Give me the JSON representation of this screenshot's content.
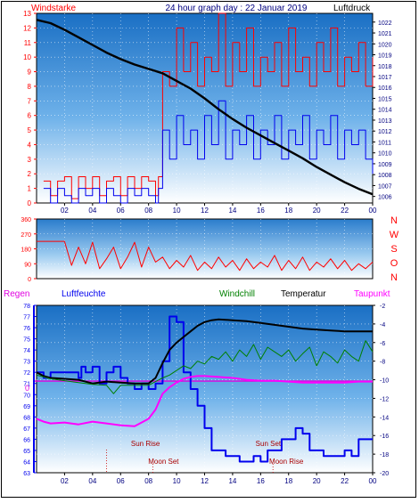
{
  "header": {
    "left_label": "Windstarke",
    "title": "24 hour graph day : 22 Januar 2019",
    "right_label": "Luftdruck"
  },
  "colors": {
    "wind_red": "#ff0000",
    "wind_blue": "#0000ee",
    "pressure_black": "#000000",
    "direction_red": "#ff0000",
    "humidity_blue": "#0000ee",
    "windchill_green": "#008000",
    "temperature_black": "#000000",
    "dewpoint_magenta": "#ff00ff",
    "regen_magenta": "#e000e0",
    "axis_blue": "#000080",
    "gradient_top": "#1a6fc4",
    "gradient_bottom": "#ffffff"
  },
  "x_ticks": [
    "02",
    "04",
    "06",
    "08",
    "10",
    "12",
    "14",
    "16",
    "18",
    "20",
    "22",
    "00"
  ],
  "panel2": {
    "directions": [
      "N",
      "W",
      "S",
      "O",
      "N"
    ]
  },
  "panel3": {
    "legend": {
      "regen": "Regen",
      "luftfeuchte": "Luftfeuchte",
      "windchill": "Windchill",
      "temperatur": "Temperatur",
      "taupunkt": "Taupunkt"
    },
    "rain_zero_label": "0",
    "events": {
      "sun_rise": "Sun Rise",
      "moon_set": "Moon Set",
      "sun_set": "Sun Set",
      "moon_rise": "Moon Rise"
    }
  },
  "chart_data": [
    {
      "type": "line",
      "title": "24 hour graph day : 22 Januar 2019",
      "xlabel": "",
      "x_range_hours": [
        0,
        24
      ],
      "y_left": {
        "label": "Windstarke",
        "ticks": [
          0,
          1,
          2,
          3,
          4,
          5,
          6,
          7,
          8,
          9,
          10,
          11,
          12,
          13
        ],
        "lim": [
          0,
          13
        ]
      },
      "y_right": {
        "label": "Luftdruck",
        "ticks": [
          1006,
          1007,
          1008,
          1009,
          1010,
          1011,
          1012,
          1013,
          1014,
          1015,
          1016,
          1017,
          1018,
          1019,
          1020,
          1021,
          1022
        ],
        "lim": [
          1005.4,
          1022.8
        ]
      },
      "grid": true,
      "series": [
        {
          "name": "Windstarke",
          "axis": "left",
          "x": [
            0.5,
            1.0,
            1.5,
            2.0,
            2.5,
            3.0,
            3.5,
            4.0,
            4.5,
            5.0,
            5.5,
            6.0,
            6.5,
            7.0,
            7.5,
            8.0,
            8.5,
            8.7,
            9.0,
            9.5,
            10.0,
            10.5,
            11.0,
            11.5,
            12.0,
            12.5,
            13.0,
            13.5,
            14.0,
            14.5,
            15.0,
            15.5,
            16.0,
            16.5,
            17.0,
            17.5,
            18.0,
            18.5,
            19.0,
            19.5,
            20.0,
            20.5,
            21.0,
            21.5,
            22.0,
            22.5,
            23.0,
            23.5,
            24.0
          ],
          "values": [
            1.5,
            0.5,
            1.5,
            1.8,
            0.3,
            1.8,
            1.0,
            1.8,
            0.5,
            1.5,
            1.8,
            0.5,
            1.8,
            1.0,
            1.8,
            1.5,
            0.5,
            1.8,
            9,
            8,
            12,
            9,
            11,
            8,
            10,
            9,
            13,
            8,
            11,
            9,
            12,
            8,
            10,
            9,
            11,
            8,
            12,
            9,
            10,
            8,
            11,
            9,
            12,
            8,
            10,
            9,
            11,
            8,
            10
          ]
        },
        {
          "name": "Windboen",
          "axis": "left",
          "x": [
            0.5,
            1.0,
            1.5,
            2.0,
            2.5,
            3.0,
            3.5,
            4.0,
            4.5,
            5.0,
            5.5,
            6.0,
            6.5,
            7.0,
            7.5,
            8.0,
            8.5,
            8.7,
            9.0,
            9.5,
            10.0,
            10.5,
            11.0,
            11.5,
            12.0,
            12.5,
            13.0,
            13.5,
            14.0,
            14.5,
            15.0,
            15.5,
            16.0,
            16.5,
            17.0,
            17.5,
            18.0,
            18.5,
            19.0,
            19.5,
            20.0,
            20.5,
            21.0,
            21.5,
            22.0,
            22.5,
            23.0,
            23.5,
            24.0
          ],
          "values": [
            1.0,
            0.0,
            1.0,
            0.5,
            0.0,
            1.0,
            0.5,
            1.0,
            0.0,
            1.0,
            0.5,
            0.0,
            1.0,
            0.5,
            1.0,
            0.5,
            0.0,
            1.0,
            5,
            3,
            6,
            4,
            5,
            3,
            6,
            4,
            7,
            3,
            5,
            4,
            6,
            3,
            5,
            4,
            6,
            3,
            5,
            4,
            6,
            3,
            5,
            4,
            6,
            3,
            5,
            4,
            5,
            3,
            2
          ]
        },
        {
          "name": "Luftdruck",
          "axis": "right",
          "x": [
            0,
            1,
            2,
            3,
            4,
            5,
            6,
            7,
            8,
            9,
            10,
            11,
            12,
            13,
            14,
            15,
            16,
            17,
            18,
            19,
            20,
            21,
            22,
            23,
            24
          ],
          "values": [
            1022.2,
            1021.9,
            1021.3,
            1020.6,
            1019.9,
            1019.2,
            1018.6,
            1018.1,
            1017.7,
            1017.3,
            1016.6,
            1015.9,
            1015.0,
            1014.0,
            1013.1,
            1012.3,
            1011.6,
            1010.9,
            1010.2,
            1009.5,
            1008.7,
            1008.0,
            1007.3,
            1006.7,
            1006.2
          ]
        }
      ]
    },
    {
      "type": "line",
      "title": "",
      "x_range_hours": [
        0,
        24
      ],
      "y_left": {
        "label": "",
        "ticks": [
          0,
          90,
          180,
          270,
          360
        ],
        "lim": [
          0,
          360
        ]
      },
      "grid": true,
      "series": [
        {
          "name": "Windrichtung",
          "x": [
            0,
            0.5,
            1,
            1.5,
            2,
            2.5,
            3,
            3.5,
            4,
            4.5,
            5,
            5.5,
            6,
            6.5,
            7,
            7.5,
            8,
            8.5,
            9,
            9.5,
            10,
            10.5,
            11,
            11.5,
            12,
            12.5,
            13,
            13.5,
            14,
            14.5,
            15,
            15.5,
            16,
            16.5,
            17,
            17.5,
            18,
            18.5,
            19,
            19.5,
            20,
            20.5,
            21,
            21.5,
            22,
            22.5,
            23,
            23.5,
            24
          ],
          "values": [
            225,
            225,
            225,
            225,
            225,
            80,
            190,
            90,
            220,
            60,
            120,
            190,
            60,
            130,
            220,
            70,
            190,
            100,
            130,
            60,
            110,
            70,
            140,
            50,
            100,
            60,
            130,
            70,
            110,
            50,
            120,
            60,
            100,
            70,
            140,
            50,
            110,
            60,
            130,
            50,
            100,
            70,
            120,
            60,
            110,
            50,
            90,
            60,
            100
          ]
        }
      ]
    },
    {
      "type": "line",
      "title": "",
      "x_range_hours": [
        0,
        24
      ],
      "y_left": {
        "label": "Luftfeuchte",
        "ticks": [
          63,
          64,
          65,
          66,
          67,
          68,
          69,
          70,
          71,
          72,
          73,
          74,
          75,
          76,
          77,
          78
        ],
        "lim": [
          63,
          78
        ]
      },
      "y_right": {
        "label": "Temperatur",
        "ticks": [
          -20,
          -18,
          -16,
          -14,
          -12,
          -10,
          -8,
          -6,
          -4,
          -2
        ],
        "lim": [
          -20,
          -2
        ]
      },
      "grid": true,
      "series": [
        {
          "name": "Luftfeuchte",
          "axis": "left",
          "x": [
            0,
            0.5,
            1,
            2,
            3,
            3.2,
            3.5,
            4,
            4.5,
            5,
            5.5,
            6,
            6.5,
            7,
            7.5,
            8,
            8.5,
            9,
            9.5,
            10,
            10.5,
            11,
            11.5,
            12,
            12.5,
            13,
            13.5,
            14,
            14.5,
            15,
            15.5,
            16,
            16.5,
            17,
            17.5,
            18,
            18.5,
            19,
            19.5,
            20,
            20.5,
            21,
            21.5,
            22,
            22.5,
            23,
            23.5,
            24
          ],
          "values": [
            72,
            71.5,
            72,
            72,
            71.5,
            72.5,
            72,
            72.5,
            71,
            72,
            72.5,
            71.5,
            71,
            70.5,
            71,
            70.5,
            71,
            73,
            77,
            76.5,
            72,
            70.5,
            69,
            67,
            65,
            65,
            64.5,
            64.5,
            64,
            64,
            64.5,
            64,
            65,
            65,
            66,
            66,
            67,
            66.5,
            65,
            65,
            64.5,
            64.5,
            64.5,
            65,
            64.5,
            66,
            66,
            66
          ]
        },
        {
          "name": "Temperatur",
          "axis": "right",
          "x": [
            0,
            0.5,
            1,
            2,
            3,
            4,
            5,
            6,
            7,
            8,
            8.5,
            9,
            9.5,
            10,
            10.5,
            11,
            11.5,
            12,
            12.5,
            13,
            14,
            15,
            16,
            17,
            18,
            19,
            20,
            21,
            22,
            23,
            24
          ],
          "values": [
            -9.2,
            -9.6,
            -9.8,
            -9.9,
            -10.0,
            -10.4,
            -10.2,
            -10.3,
            -10.4,
            -10.4,
            -9.8,
            -8.2,
            -6.8,
            -6.0,
            -5.4,
            -4.8,
            -4.2,
            -3.8,
            -3.6,
            -3.5,
            -3.6,
            -3.7,
            -3.9,
            -4.1,
            -4.3,
            -4.5,
            -4.6,
            -4.7,
            -4.8,
            -4.8,
            -4.8
          ]
        },
        {
          "name": "Windchill",
          "axis": "right",
          "x": [
            0,
            1,
            2,
            3,
            4,
            5,
            5.5,
            6,
            7,
            8,
            8.5,
            9,
            9.5,
            10,
            10.5,
            11,
            11.5,
            12,
            12.5,
            13,
            13.5,
            14,
            14.5,
            15,
            15.5,
            16,
            16.5,
            17,
            17.5,
            18,
            18.5,
            19,
            19.5,
            20,
            20.5,
            21,
            21.5,
            22,
            22.5,
            23,
            23.5,
            24
          ],
          "values": [
            -9.5,
            -9.9,
            -10.1,
            -10.3,
            -10.5,
            -10.6,
            -11.5,
            -10.6,
            -10.6,
            -10.6,
            -10.2,
            -9.8,
            -9.5,
            -9.0,
            -8.5,
            -8.8,
            -8.0,
            -8.3,
            -7.5,
            -7.8,
            -7.0,
            -8.0,
            -6.8,
            -7.5,
            -6.2,
            -7.8,
            -6.5,
            -7.0,
            -7.5,
            -6.8,
            -8.0,
            -7.2,
            -6.5,
            -8.5,
            -7.0,
            -7.5,
            -8.2,
            -6.8,
            -7.5,
            -8.0,
            -5.8,
            -7.0
          ]
        },
        {
          "name": "Taupunkt",
          "axis": "right",
          "x": [
            0,
            0.5,
            1,
            2,
            3,
            4,
            5,
            6,
            7,
            7.5,
            8,
            8.5,
            9,
            9.5,
            10,
            10.5,
            11,
            11.5,
            12,
            13,
            14,
            15,
            16,
            17,
            18,
            19,
            20,
            21,
            22,
            23,
            24
          ],
          "values": [
            -14.2,
            -14.5,
            -14.7,
            -14.6,
            -14.8,
            -14.5,
            -14.7,
            -14.9,
            -15.0,
            -14.6,
            -14.2,
            -13.2,
            -11.5,
            -10.8,
            -10.3,
            -9.9,
            -9.7,
            -9.6,
            -9.6,
            -9.7,
            -9.8,
            -10.0,
            -10.1,
            -10.1,
            -10.2,
            -10.3,
            -10.3,
            -10.3,
            -10.3,
            -10.2,
            -10.2
          ]
        },
        {
          "name": "Regen",
          "axis": "rain",
          "x": [
            0,
            24
          ],
          "values": [
            0,
            0
          ]
        }
      ]
    }
  ]
}
